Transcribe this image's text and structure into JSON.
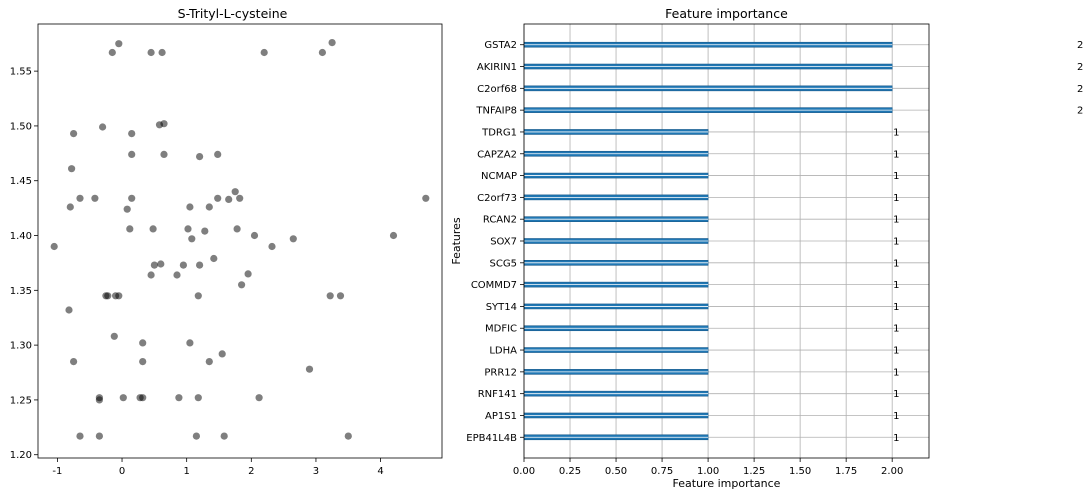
{
  "chart_data": [
    {
      "type": "scatter",
      "title": "S-Trityl-L-cysteine",
      "xlabel": "",
      "ylabel": "",
      "xlim": [
        -1.3,
        4.95
      ],
      "ylim": [
        1.197,
        1.593
      ],
      "xticks": [
        -1,
        0,
        1,
        2,
        3,
        4
      ],
      "yticks": [
        1.2,
        1.25,
        1.3,
        1.35,
        1.4,
        1.45,
        1.5,
        1.55
      ],
      "ytick_labels": [
        "1.20",
        "1.25",
        "1.30",
        "1.35",
        "1.40",
        "1.45",
        "1.50",
        "1.55"
      ],
      "grid": false,
      "marker_color": "#000000",
      "marker_opacity": 0.5,
      "points": [
        [
          -0.05,
          1.575
        ],
        [
          -0.15,
          1.567
        ],
        [
          0.45,
          1.567
        ],
        [
          0.62,
          1.567
        ],
        [
          2.2,
          1.567
        ],
        [
          3.1,
          1.567
        ],
        [
          3.25,
          1.576
        ],
        [
          -0.75,
          1.493
        ],
        [
          -0.3,
          1.499
        ],
        [
          0.15,
          1.493
        ],
        [
          0.58,
          1.501
        ],
        [
          0.65,
          1.502
        ],
        [
          -0.78,
          1.461
        ],
        [
          0.15,
          1.474
        ],
        [
          0.65,
          1.474
        ],
        [
          1.2,
          1.472
        ],
        [
          1.48,
          1.474
        ],
        [
          -0.8,
          1.426
        ],
        [
          -0.65,
          1.434
        ],
        [
          -0.42,
          1.434
        ],
        [
          0.08,
          1.424
        ],
        [
          0.15,
          1.434
        ],
        [
          1.05,
          1.426
        ],
        [
          1.35,
          1.426
        ],
        [
          1.48,
          1.434
        ],
        [
          1.65,
          1.433
        ],
        [
          1.75,
          1.44
        ],
        [
          1.82,
          1.434
        ],
        [
          4.7,
          1.434
        ],
        [
          -1.05,
          1.39
        ],
        [
          0.12,
          1.406
        ],
        [
          0.48,
          1.406
        ],
        [
          1.02,
          1.406
        ],
        [
          1.08,
          1.397
        ],
        [
          1.28,
          1.404
        ],
        [
          1.78,
          1.406
        ],
        [
          2.05,
          1.4
        ],
        [
          2.32,
          1.39
        ],
        [
          2.65,
          1.397
        ],
        [
          4.2,
          1.4
        ],
        [
          0.5,
          1.373
        ],
        [
          0.6,
          1.374
        ],
        [
          0.45,
          1.364
        ],
        [
          0.85,
          1.364
        ],
        [
          0.95,
          1.373
        ],
        [
          1.2,
          1.373
        ],
        [
          1.42,
          1.379
        ],
        [
          1.95,
          1.365
        ],
        [
          1.85,
          1.355
        ],
        [
          -0.25,
          1.345
        ],
        [
          -0.22,
          1.345
        ],
        [
          -0.1,
          1.345
        ],
        [
          -0.05,
          1.345
        ],
        [
          1.18,
          1.345
        ],
        [
          3.22,
          1.345
        ],
        [
          3.38,
          1.345
        ],
        [
          -0.82,
          1.332
        ],
        [
          -0.12,
          1.308
        ],
        [
          0.32,
          1.302
        ],
        [
          1.05,
          1.302
        ],
        [
          1.55,
          1.292
        ],
        [
          0.32,
          1.285
        ],
        [
          1.35,
          1.285
        ],
        [
          -0.75,
          1.285
        ],
        [
          2.9,
          1.278
        ],
        [
          -0.35,
          1.252
        ],
        [
          -0.35,
          1.25
        ],
        [
          0.02,
          1.252
        ],
        [
          0.28,
          1.252
        ],
        [
          0.32,
          1.252
        ],
        [
          0.88,
          1.252
        ],
        [
          1.18,
          1.252
        ],
        [
          2.12,
          1.252
        ],
        [
          -0.65,
          1.217
        ],
        [
          -0.35,
          1.217
        ],
        [
          1.15,
          1.217
        ],
        [
          1.58,
          1.217
        ],
        [
          3.5,
          1.217
        ]
      ]
    },
    {
      "type": "bar",
      "orientation": "horizontal",
      "title": "Feature importance",
      "xlabel": "Feature importance",
      "ylabel": "Features",
      "xlim": [
        0,
        2.2
      ],
      "xticks": [
        0.0,
        0.25,
        0.5,
        0.75,
        1.0,
        1.25,
        1.5,
        1.75,
        2.0
      ],
      "xtick_labels": [
        "0.00",
        "0.25",
        "0.50",
        "0.75",
        "1.00",
        "1.25",
        "1.50",
        "1.75",
        "2.00"
      ],
      "grid": true,
      "bar_color": "#1f77b4",
      "categories": [
        "GSTA2",
        "AKIRIN1",
        "C2orf68",
        "TNFAIP8",
        "TDRG1",
        "CAPZA2",
        "NCMAP",
        "C2orf73",
        "RCAN2",
        "SOX7",
        "SCG5",
        "COMMD7",
        "SYT14",
        "MDFIC",
        "LDHA",
        "PRR12",
        "RNF141",
        "AP1S1",
        "EPB41L4B"
      ],
      "values": [
        2,
        2,
        2,
        2,
        1,
        1,
        1,
        1,
        1,
        1,
        1,
        1,
        1,
        1,
        1,
        1,
        1,
        1,
        1
      ],
      "data_labels": [
        "2",
        "2",
        "2",
        "2",
        "1",
        "1",
        "1",
        "1",
        "1",
        "1",
        "1",
        "1",
        "1",
        "1",
        "1",
        "1",
        "1",
        "1",
        "1"
      ]
    }
  ]
}
